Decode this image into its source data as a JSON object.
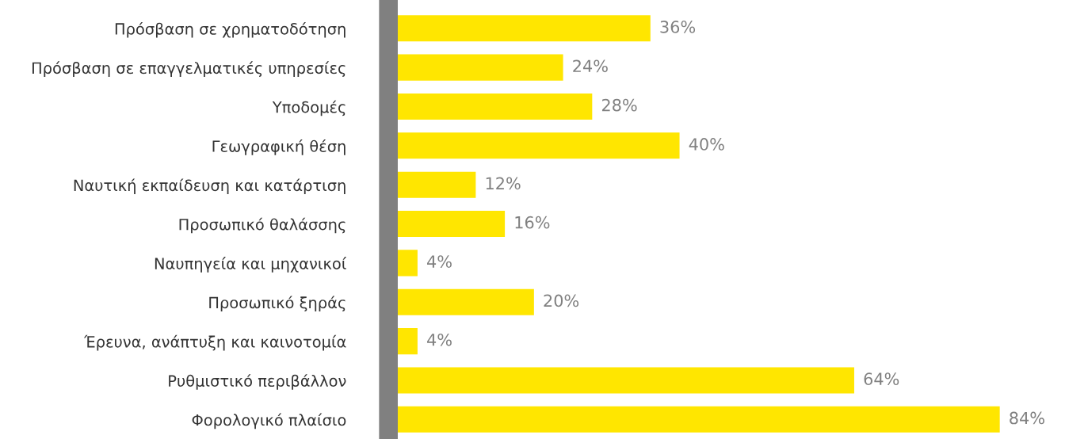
{
  "chart_data": {
    "type": "bar",
    "orientation": "horizontal",
    "categories": [
      "Πρόσβαση σε χρηματοδότηση",
      "Πρόσβαση σε επαγγελματικές υπηρεσίες",
      "Υποδομές",
      "Γεωγραφική θέση",
      "Ναυτική εκπαίδευση και κατάρτιση",
      "Προσωπικό θαλάσσης",
      "Ναυπηγεία και μηχανικοί",
      "Προσωπικό ξηράς",
      "Έρευνα, ανάπτυξη και καινοτομία",
      "Ρυθμιστικό περιβάλλον",
      "Φορολογικό πλαίσιο"
    ],
    "values": [
      36,
      24,
      28,
      40,
      12,
      16,
      4,
      20,
      4,
      64,
      84
    ],
    "value_labels": [
      "36%",
      "24%",
      "28%",
      "40%",
      "12%",
      "16%",
      "4%",
      "20%",
      "4%",
      "64%",
      "84%"
    ],
    "color": "#ffe600",
    "grid": false,
    "legend": false
  }
}
